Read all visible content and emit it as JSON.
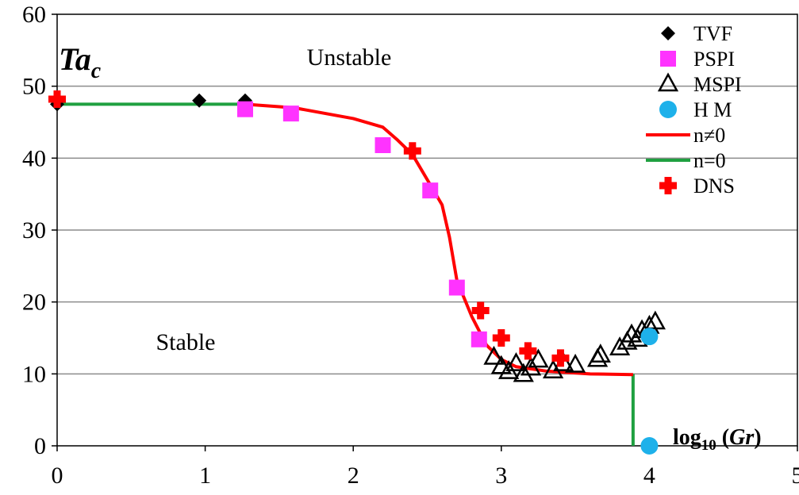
{
  "chart_data": {
    "type": "scatter",
    "xlim": [
      0,
      5
    ],
    "ylim": [
      0,
      60
    ],
    "x_ticks": [
      0,
      1,
      2,
      3,
      4,
      5
    ],
    "y_ticks": [
      0,
      10,
      20,
      30,
      40,
      50,
      60
    ],
    "grid": "horizontal",
    "legend_position": "top-right",
    "ylabel": {
      "main": "Ta",
      "sub": "c"
    },
    "xlabel": {
      "prefix": "log",
      "sub": "10",
      "mid": " (",
      "var": "Gr",
      "suffix": ")"
    },
    "annotations": [
      "Unstable",
      "Stable"
    ],
    "series": [
      {
        "name": "TVF",
        "marker": "diamond",
        "color": "#000000",
        "points": [
          [
            0.0,
            47.5
          ],
          [
            0.96,
            48.0
          ],
          [
            1.27,
            48.0
          ]
        ]
      },
      {
        "name": "PSPI",
        "marker": "square",
        "color": "#ff33ff",
        "points": [
          [
            1.27,
            46.8
          ],
          [
            1.58,
            46.2
          ],
          [
            2.2,
            41.8
          ],
          [
            2.52,
            35.5
          ],
          [
            2.7,
            22.0
          ],
          [
            2.85,
            14.8
          ]
        ]
      },
      {
        "name": "MSPI",
        "marker": "triangle",
        "color": "#000000",
        "points": [
          [
            2.95,
            12.3
          ],
          [
            3.0,
            11.0
          ],
          [
            3.05,
            10.3
          ],
          [
            3.1,
            11.4
          ],
          [
            3.15,
            9.9
          ],
          [
            3.2,
            10.8
          ],
          [
            3.25,
            11.9
          ],
          [
            3.35,
            10.4
          ],
          [
            3.42,
            11.4
          ],
          [
            3.5,
            11.2
          ],
          [
            3.65,
            12.0
          ],
          [
            3.67,
            12.6
          ],
          [
            3.8,
            13.6
          ],
          [
            3.85,
            14.4
          ],
          [
            3.88,
            15.4
          ],
          [
            3.92,
            14.8
          ],
          [
            3.95,
            16.0
          ],
          [
            4.0,
            16.6
          ],
          [
            4.04,
            17.2
          ]
        ]
      },
      {
        "name": "H M",
        "marker": "circle",
        "color": "#1eb1ea",
        "points": [
          [
            4.0,
            15.2
          ],
          [
            4.0,
            0.0
          ]
        ]
      },
      {
        "name": "n≠0",
        "marker": "line",
        "color": "#ff0000",
        "points": [
          [
            1.27,
            47.5
          ],
          [
            1.6,
            47.0
          ],
          [
            2.0,
            45.5
          ],
          [
            2.2,
            44.3
          ],
          [
            2.3,
            42.5
          ],
          [
            2.4,
            40.5
          ],
          [
            2.5,
            37.0
          ],
          [
            2.6,
            33.5
          ],
          [
            2.65,
            29.0
          ],
          [
            2.7,
            23.0
          ],
          [
            2.8,
            18.0
          ],
          [
            2.9,
            14.0
          ],
          [
            3.0,
            12.0
          ],
          [
            3.1,
            11.0
          ],
          [
            3.3,
            10.4
          ],
          [
            3.6,
            10.0
          ],
          [
            3.89,
            9.9
          ]
        ]
      },
      {
        "name": "n=0",
        "marker": "line",
        "color": "#1fa040",
        "segments": [
          [
            [
              0.0,
              47.5
            ],
            [
              1.27,
              47.5
            ]
          ],
          [
            [
              3.89,
              10.0
            ],
            [
              3.89,
              0.0
            ]
          ]
        ]
      },
      {
        "name": "DNS",
        "marker": "cross",
        "color": "#ff0000",
        "points": [
          [
            0.0,
            48.2
          ],
          [
            2.4,
            41.0
          ],
          [
            2.86,
            18.8
          ],
          [
            3.0,
            15.0
          ],
          [
            3.18,
            13.2
          ],
          [
            3.4,
            12.2
          ]
        ]
      }
    ]
  }
}
